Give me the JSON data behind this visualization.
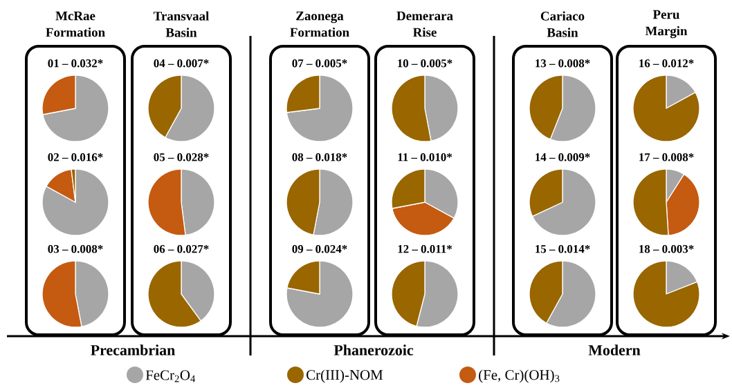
{
  "chart_data": [
    {
      "type": "pie",
      "title": "01 – 0.032*",
      "categories": [
        null,
        null,
        null
      ],
      "values": [
        72,
        28,
        0
      ],
      "colors": [
        "#a6a6a6",
        "#c55a11",
        "#996600"
      ]
    },
    {
      "type": "pie",
      "title": "02 – 0.016*",
      "categories": [
        null,
        null,
        null
      ],
      "values": [
        83,
        15,
        2
      ],
      "colors": [
        "#a6a6a6",
        "#c55a11",
        "#996600"
      ]
    },
    {
      "type": "pie",
      "title": "03 – 0.008*",
      "categories": [
        null,
        null,
        null
      ],
      "values": [
        47,
        53,
        0
      ],
      "colors": [
        "#a6a6a6",
        "#c55a11",
        "#996600"
      ]
    },
    {
      "type": "pie",
      "title": "04 – 0.007*",
      "categories": [
        null,
        null,
        null
      ],
      "values": [
        58,
        0,
        42
      ],
      "colors": [
        "#a6a6a6",
        "#c55a11",
        "#996600"
      ]
    },
    {
      "type": "pie",
      "title": "05 – 0.028*",
      "categories": [
        null,
        null,
        null
      ],
      "values": [
        48,
        52,
        0
      ],
      "colors": [
        "#a6a6a6",
        "#c55a11",
        "#996600"
      ]
    },
    {
      "type": "pie",
      "title": "06 – 0.027*",
      "categories": [
        null,
        null,
        null
      ],
      "values": [
        40,
        0,
        60
      ],
      "colors": [
        "#a6a6a6",
        "#c55a11",
        "#996600"
      ]
    },
    {
      "type": "pie",
      "title": "07 – 0.005*",
      "categories": [
        null,
        null,
        null
      ],
      "values": [
        73,
        0,
        27
      ],
      "colors": [
        "#a6a6a6",
        "#c55a11",
        "#996600"
      ]
    },
    {
      "type": "pie",
      "title": "08 – 0.018*",
      "categories": [
        null,
        null,
        null
      ],
      "values": [
        53,
        0,
        47
      ],
      "colors": [
        "#a6a6a6",
        "#c55a11",
        "#996600"
      ]
    },
    {
      "type": "pie",
      "title": "09 – 0.024*",
      "categories": [
        null,
        null,
        null
      ],
      "values": [
        78,
        0,
        22
      ],
      "colors": [
        "#a6a6a6",
        "#c55a11",
        "#996600"
      ]
    },
    {
      "type": "pie",
      "title": "10 – 0.005*",
      "categories": [
        null,
        null,
        null
      ],
      "values": [
        47,
        0,
        53
      ],
      "colors": [
        "#a6a6a6",
        "#c55a11",
        "#996600"
      ]
    },
    {
      "type": "pie",
      "title": "11 – 0.010*",
      "categories": [
        null,
        null,
        null
      ],
      "values": [
        33,
        39,
        28
      ],
      "colors": [
        "#a6a6a6",
        "#c55a11",
        "#996600"
      ]
    },
    {
      "type": "pie",
      "title": "12 – 0.011*",
      "categories": [
        null,
        null,
        null
      ],
      "values": [
        54,
        0,
        46
      ],
      "colors": [
        "#a6a6a6",
        "#c55a11",
        "#996600"
      ]
    },
    {
      "type": "pie",
      "title": "13 – 0.008*",
      "categories": [
        null,
        null,
        null
      ],
      "values": [
        56,
        0,
        44
      ],
      "colors": [
        "#a6a6a6",
        "#c55a11",
        "#996600"
      ]
    },
    {
      "type": "pie",
      "title": "14 – 0.009*",
      "categories": [
        null,
        null,
        null
      ],
      "values": [
        68,
        0,
        32
      ],
      "colors": [
        "#a6a6a6",
        "#c55a11",
        "#996600"
      ]
    },
    {
      "type": "pie",
      "title": "15 – 0.014*",
      "categories": [
        null,
        null,
        null
      ],
      "values": [
        58,
        0,
        42
      ],
      "colors": [
        "#a6a6a6",
        "#c55a11",
        "#996600"
      ]
    },
    {
      "type": "pie",
      "title": "16 – 0.012*",
      "categories": [
        null,
        null,
        null
      ],
      "values": [
        17,
        0,
        83
      ],
      "colors": [
        "#a6a6a6",
        "#c55a11",
        "#996600"
      ]
    },
    {
      "type": "pie",
      "title": "17 – 0.008*",
      "categories": [
        null,
        null,
        null
      ],
      "values": [
        9,
        40,
        51
      ],
      "colors": [
        "#a6a6a6",
        "#c55a11",
        "#996600"
      ]
    },
    {
      "type": "pie",
      "title": "18 – 0.003*",
      "legend": "bottom",
      "categories": [
        "FeCr$_{2}$O$_{4}$",
        "(Fe, Cr)(OH)$_{3}$",
        "Cr(III)-NOM"
      ],
      "values": [
        19,
        0,
        81
      ],
      "colors": [
        "#a6a6a6",
        "#c55a11",
        "#996600"
      ]
    },
    {
      "type": "other",
      "annotations": [
        "McRae Formation",
        "Transvaal Basin",
        "Zaonega Formation",
        "Demerara Rise",
        "Cariaco Basin",
        "Peru Margin",
        "Precambrian",
        "Phanerozoic",
        "Modern"
      ]
    }
  ]
}
